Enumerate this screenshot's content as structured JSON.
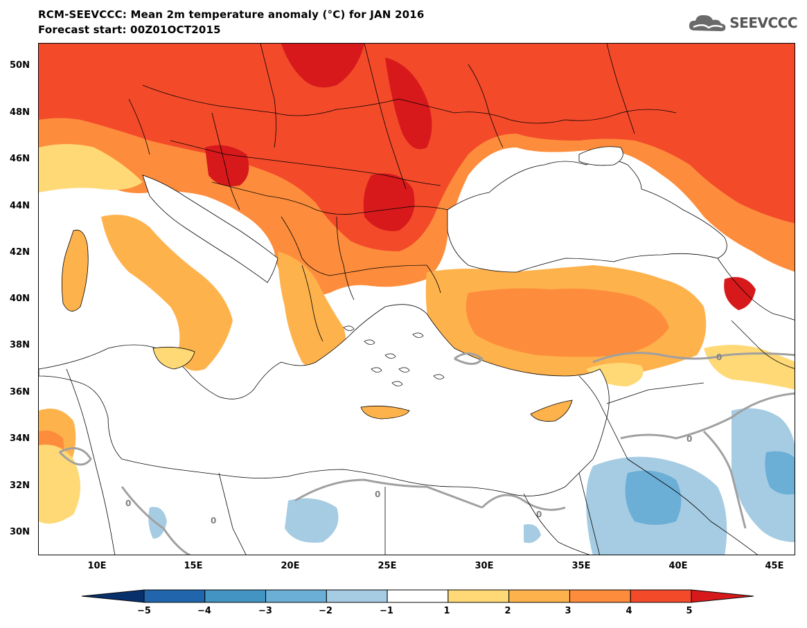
{
  "header": {
    "title": "RCM-SEEVCCC: Mean 2m temperature anomaly (°C) for JAN 2016",
    "subtitle": "Forecast start: 00Z01OCT2015",
    "logo_text": "SEEVCCC"
  },
  "map": {
    "y_axis_labels": [
      "50N",
      "48N",
      "46N",
      "44N",
      "42N",
      "40N",
      "38N",
      "36N",
      "34N",
      "32N",
      "30N"
    ],
    "x_axis_labels": [
      "10E",
      "15E",
      "20E",
      "25E",
      "30E",
      "35E",
      "40E",
      "45E"
    ],
    "contour_label": "0"
  },
  "colorbar": {
    "labels": [
      "−5",
      "−4",
      "−3",
      "−2",
      "−1",
      "1",
      "2",
      "3",
      "4",
      "5"
    ],
    "colors": [
      "#08306b",
      "#2166ac",
      "#4393c3",
      "#6baed6",
      "#a6cce3",
      "#ffffff",
      "#fed976",
      "#feb24c",
      "#fd8d3c",
      "#f34a2a",
      "#d7191c"
    ]
  }
}
